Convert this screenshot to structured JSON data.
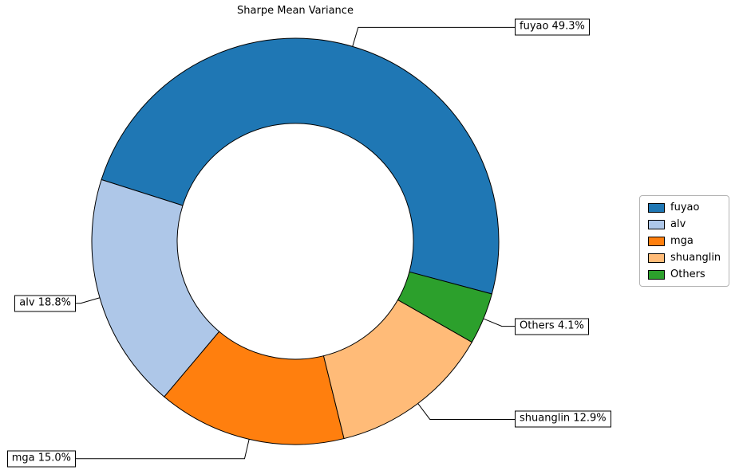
{
  "chart_data": {
    "type": "pie",
    "donut": true,
    "title": "Sharpe Mean Variance",
    "categories": [
      "fuyao",
      "alv",
      "mga",
      "shuanglin",
      "Others"
    ],
    "values": [
      49.3,
      18.8,
      15.0,
      12.9,
      4.1
    ],
    "colors": [
      "#1f77b4",
      "#aec7e8",
      "#ff7f0e",
      "#ffbb78",
      "#2ca02c"
    ],
    "slice_labels": [
      "fuyao 49.3%",
      "alv 18.8%",
      "mga 15.0%",
      "shuanglin 12.9%",
      "Others 4.1%"
    ],
    "start_angle": -15,
    "direction": "counterclockwise",
    "legend_position": "right",
    "legend_labels": [
      "fuyao",
      "alv",
      "mga",
      "shuanglin",
      "Others"
    ],
    "edge_color": "#000000",
    "background_color": "#ffffff"
  }
}
